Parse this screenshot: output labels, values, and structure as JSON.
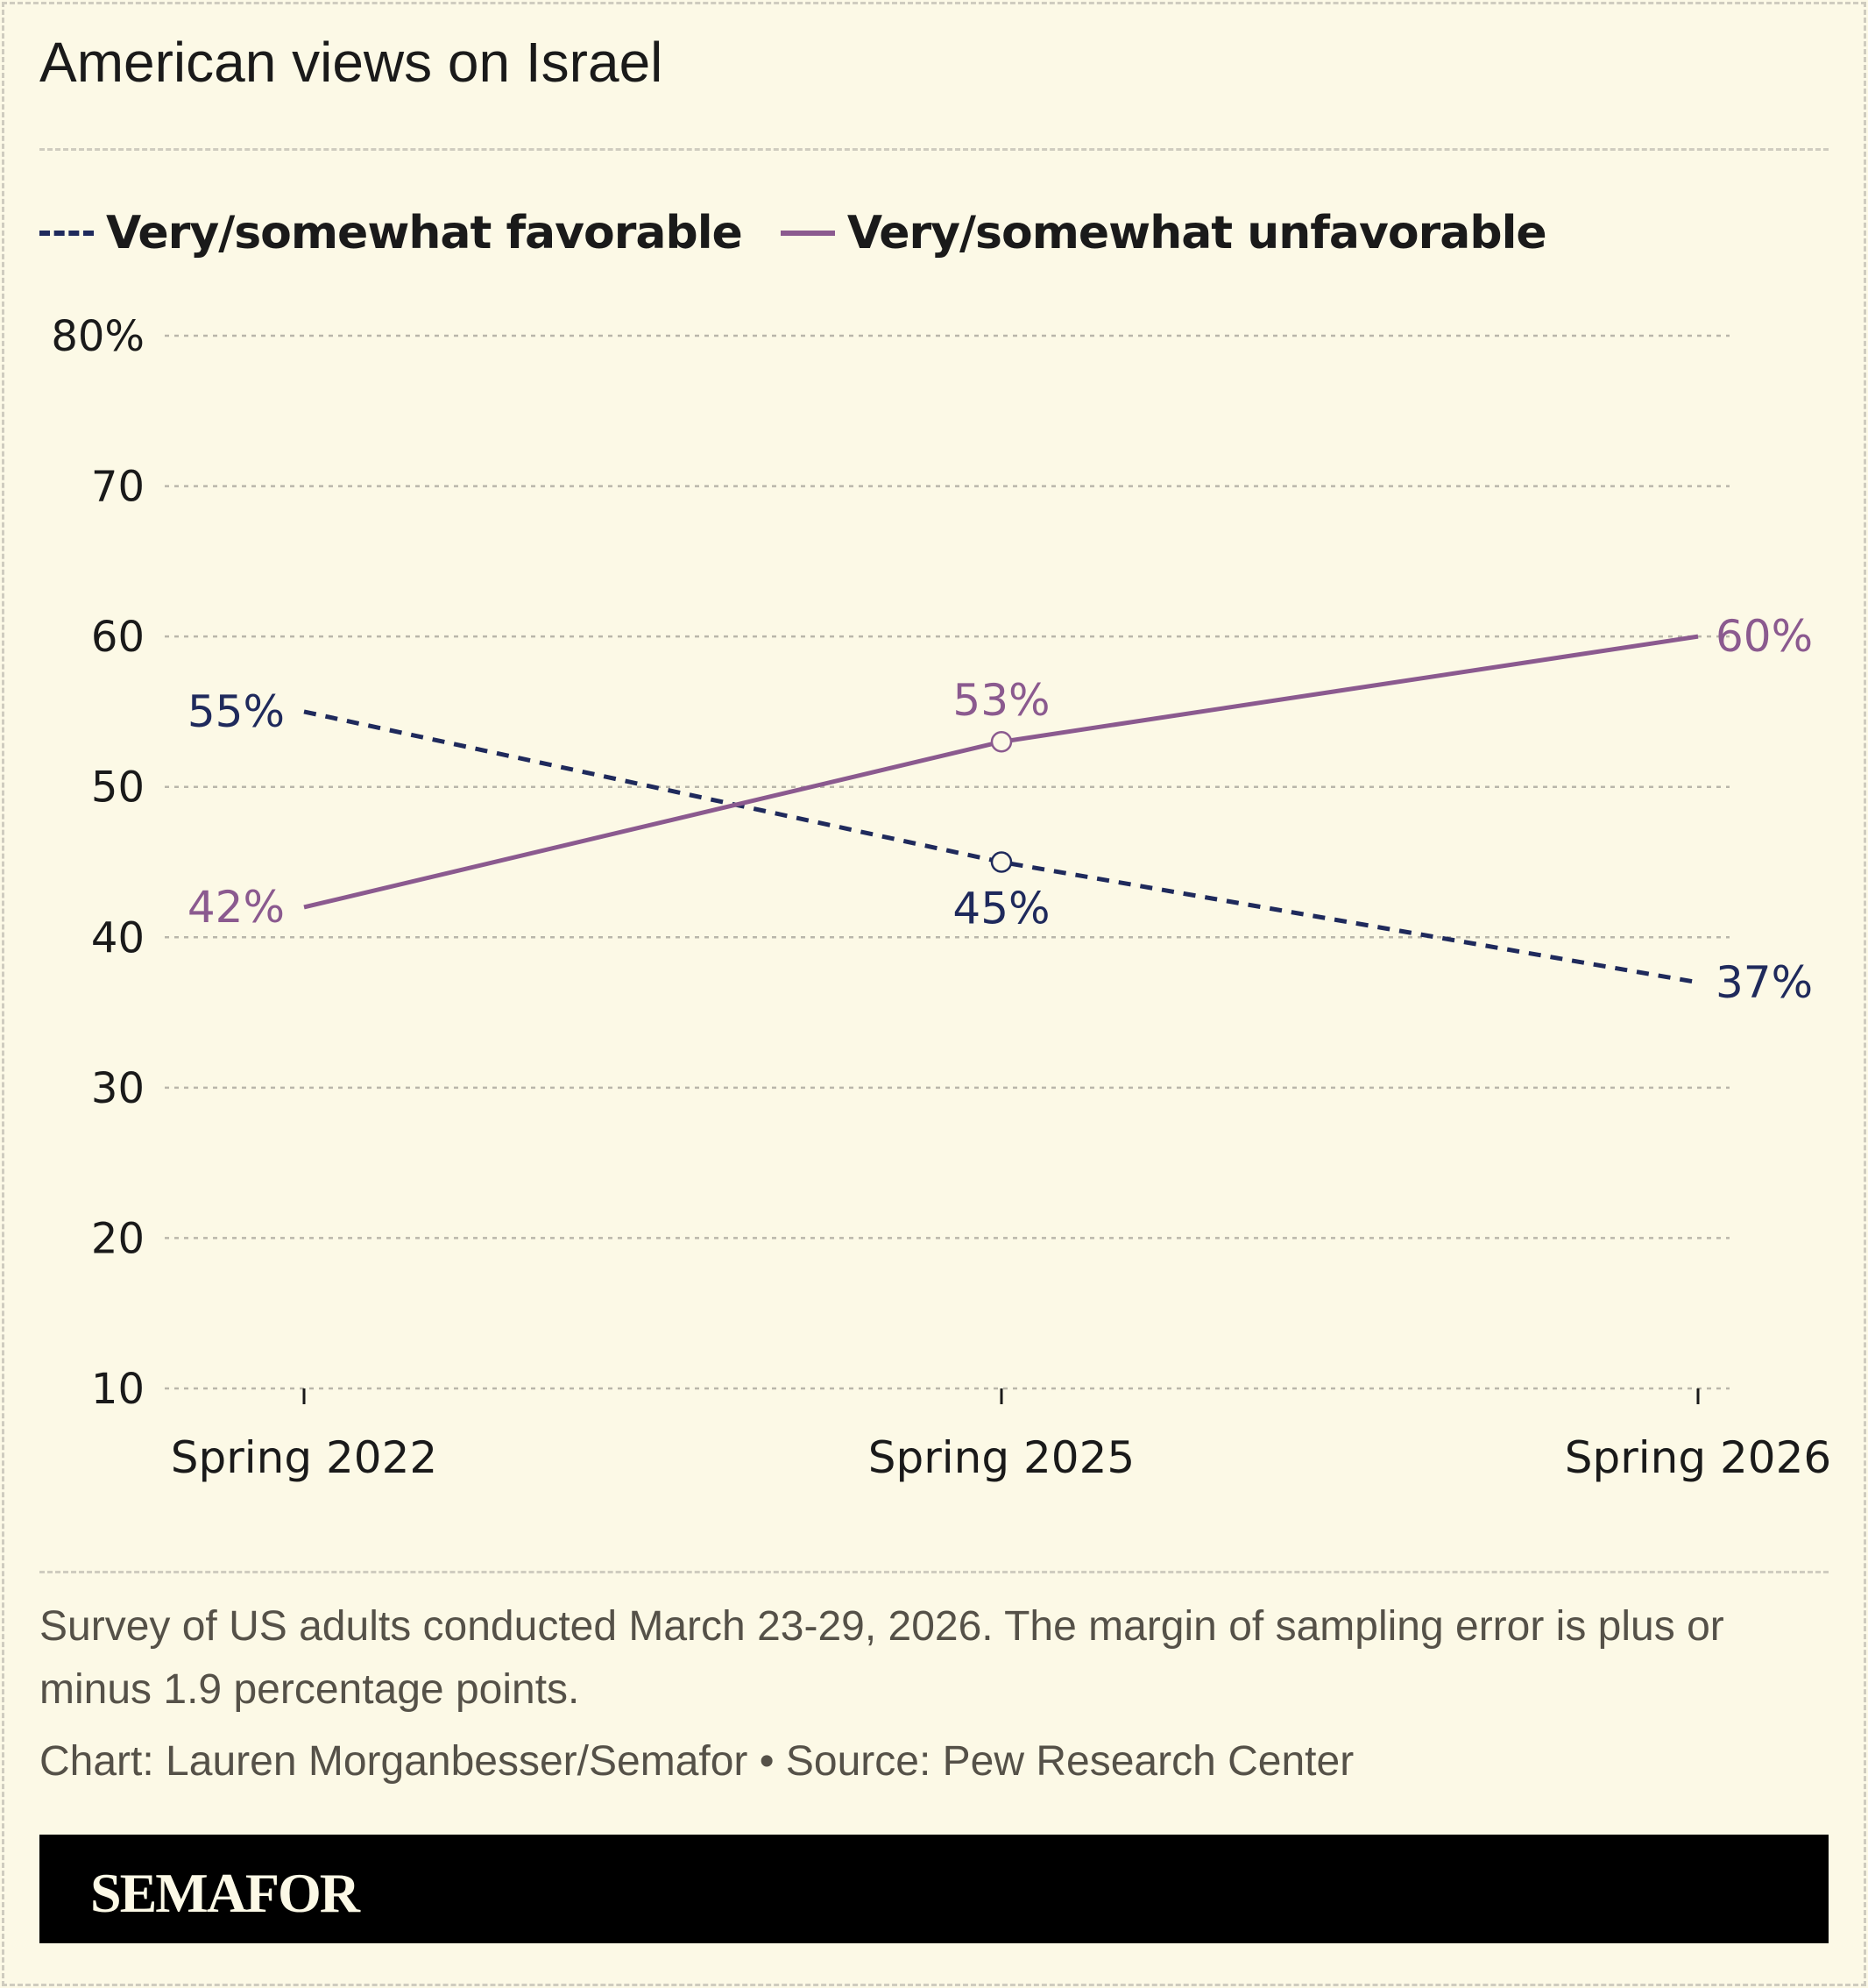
{
  "chart_data": {
    "type": "line",
    "title": "American views on Israel",
    "categories": [
      "Spring 2022",
      "Spring 2025",
      "Spring 2026"
    ],
    "series": [
      {
        "name": "Very/somewhat favorable",
        "values": [
          55,
          45,
          37
        ],
        "labels": [
          "55%",
          "45%",
          "37%"
        ],
        "color": "#1f2a5c",
        "style": "dashed"
      },
      {
        "name": "Very/somewhat unfavorable",
        "values": [
          42,
          53,
          60
        ],
        "labels": [
          "42%",
          "53%",
          "60%"
        ],
        "color": "#8b5a8f",
        "style": "solid"
      }
    ],
    "yticks": [
      80,
      70,
      60,
      50,
      40,
      30,
      20,
      10
    ],
    "ytick_labels": [
      "80%",
      "70",
      "60",
      "50",
      "40",
      "30",
      "20",
      "10"
    ],
    "ylim": [
      10,
      80
    ],
    "xlabel": "",
    "ylabel": "",
    "grid": true,
    "legend": "top-left"
  },
  "notes": "Survey of US adults conducted March 23-29, 2026. The margin of sampling error is plus or minus 1.9 percentage points.",
  "credit": "Chart: Lauren Morganbesser/Semafor • Source: Pew Research Center",
  "brand": "SEMAFOR"
}
